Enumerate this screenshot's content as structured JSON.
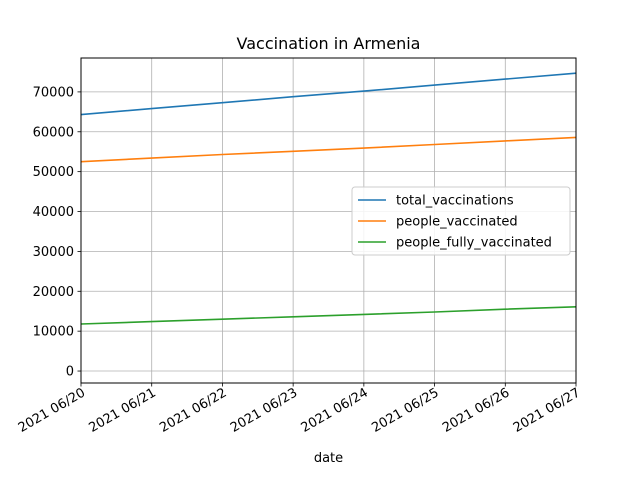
{
  "chart_data": {
    "type": "line",
    "title": "Vaccination in Armenia",
    "xlabel": "date",
    "ylabel": "",
    "x": [
      "2021 06/20",
      "2021 06/21",
      "2021 06/22",
      "2021 06/23",
      "2021 06/24",
      "2021 06/25",
      "2021 06/26",
      "2021 06/27"
    ],
    "ylim": [
      -3000,
      78500
    ],
    "yticks": [
      0,
      10000,
      20000,
      30000,
      40000,
      50000,
      60000,
      70000
    ],
    "grid": true,
    "legend_position": "center-right",
    "series": [
      {
        "name": "total_vaccinations",
        "color": "#1f77b4",
        "values": [
          64300,
          65800,
          67300,
          68800,
          70200,
          71700,
          73200,
          74700
        ]
      },
      {
        "name": "people_vaccinated",
        "color": "#ff7f0e",
        "values": [
          52500,
          53400,
          54300,
          55100,
          55900,
          56800,
          57700,
          58600
        ]
      },
      {
        "name": "people_fully_vaccinated",
        "color": "#2ca02c",
        "values": [
          11800,
          12400,
          13000,
          13600,
          14200,
          14800,
          15500,
          16100
        ]
      }
    ]
  }
}
